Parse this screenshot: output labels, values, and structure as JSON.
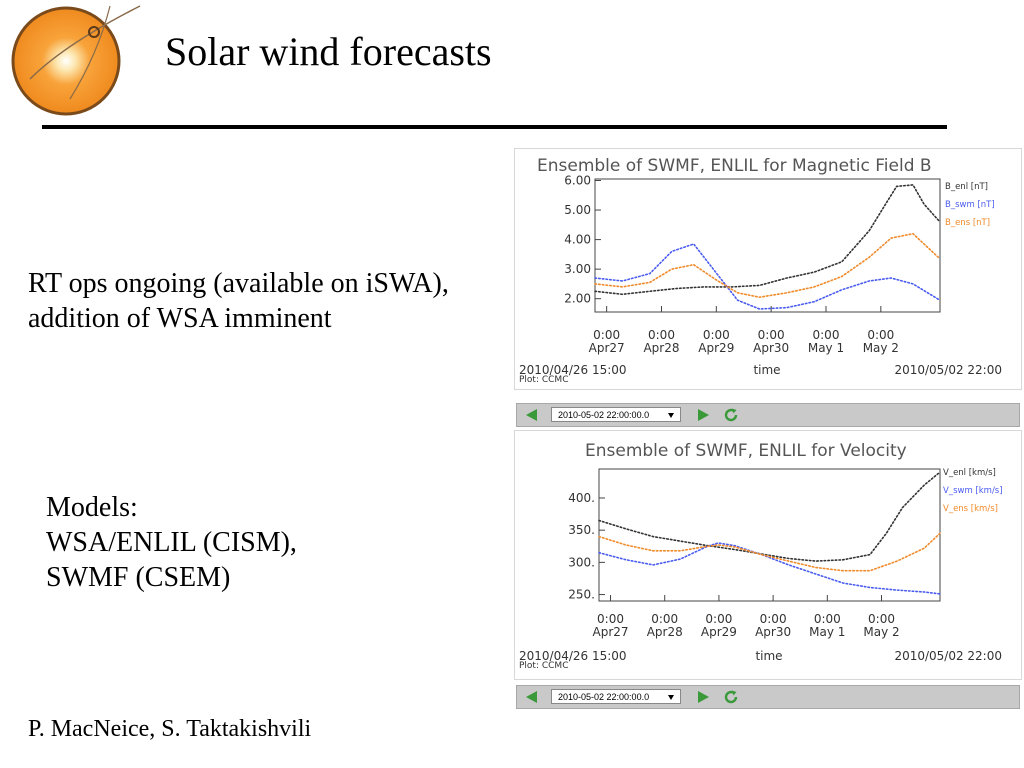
{
  "slide": {
    "title": "Solar wind forecasts",
    "body_text_1": "RT ops ongoing (available on iSWA),  addition of WSA imminent",
    "models_heading": "Models:",
    "models_line_1": "WSA/ENLIL (CISM),",
    "models_line_2": "SWMF (CSEM)",
    "credit": "P. MacNeice, S. Taktakishvili"
  },
  "colors": {
    "enlil": "#333333",
    "swmf": "#4a5cf0",
    "ensemble": "#f08a2a",
    "accent_green": "#3a9a3a"
  },
  "controls": [
    {
      "date_value": "2010-05-02 22:00:00.0"
    },
    {
      "date_value": "2010-05-02 22:00:00.0"
    }
  ],
  "chart_data": [
    {
      "type": "line",
      "title": "Ensemble of SWMF, ENLIL for Magnetic Field B",
      "xlabel": "time",
      "x_ticks": [
        {
          "t": 0.2125,
          "top": "0:00",
          "bottom": "Apr27"
        },
        {
          "t": 1.2125,
          "top": "0:00",
          "bottom": "Apr28"
        },
        {
          "t": 2.2125,
          "top": "0:00",
          "bottom": "Apr29"
        },
        {
          "t": 3.2125,
          "top": "0:00",
          "bottom": "Apr30"
        },
        {
          "t": 4.2125,
          "top": "0:00",
          "bottom": "May 1"
        },
        {
          "t": 5.2125,
          "top": "0:00",
          "bottom": "May 2"
        }
      ],
      "xlim": [
        0,
        6.2917
      ],
      "y_ticks": [
        "2.00",
        "3.00",
        "4.00",
        "5.00",
        "6.00"
      ],
      "ylim": [
        1.55,
        6.05
      ],
      "start_label": "2010/04/26 15:00",
      "end_label": "2010/05/02 22:00",
      "plot_label": "Plot: CCMC",
      "series": [
        {
          "name": "B_enl [nT]",
          "color_key": "enlil",
          "x": [
            0.0,
            0.5,
            1.0,
            1.5,
            2.0,
            2.5,
            3.0,
            3.5,
            4.0,
            4.5,
            5.0,
            5.3,
            5.5,
            5.8,
            6.0,
            6.29
          ],
          "y": [
            2.25,
            2.15,
            2.25,
            2.35,
            2.4,
            2.4,
            2.45,
            2.7,
            2.9,
            3.25,
            4.3,
            5.2,
            5.8,
            5.85,
            5.2,
            4.6
          ]
        },
        {
          "name": "B_swm [nT]",
          "color_key": "swmf",
          "x": [
            0.0,
            0.5,
            1.0,
            1.4,
            1.8,
            2.2,
            2.6,
            3.0,
            3.5,
            4.0,
            4.5,
            5.0,
            5.4,
            5.8,
            6.29
          ],
          "y": [
            2.7,
            2.6,
            2.85,
            3.6,
            3.85,
            2.9,
            1.95,
            1.65,
            1.7,
            1.9,
            2.3,
            2.6,
            2.7,
            2.5,
            1.95
          ]
        },
        {
          "name": "B_ens [nT]",
          "color_key": "ensemble",
          "x": [
            0.0,
            0.5,
            1.0,
            1.4,
            1.8,
            2.2,
            2.6,
            3.0,
            3.5,
            4.0,
            4.5,
            5.0,
            5.4,
            5.8,
            6.29
          ],
          "y": [
            2.5,
            2.4,
            2.55,
            3.0,
            3.15,
            2.65,
            2.2,
            2.05,
            2.2,
            2.4,
            2.75,
            3.4,
            4.05,
            4.2,
            3.35
          ]
        }
      ]
    },
    {
      "type": "line",
      "title": "Ensemble of SWMF, ENLIL for Velocity",
      "xlabel": "time",
      "x_ticks": [
        {
          "t": 0.2125,
          "top": "0:00",
          "bottom": "Apr27"
        },
        {
          "t": 1.2125,
          "top": "0:00",
          "bottom": "Apr28"
        },
        {
          "t": 2.2125,
          "top": "0:00",
          "bottom": "Apr29"
        },
        {
          "t": 3.2125,
          "top": "0:00",
          "bottom": "Apr30"
        },
        {
          "t": 4.2125,
          "top": "0:00",
          "bottom": "May 1"
        },
        {
          "t": 5.2125,
          "top": "0:00",
          "bottom": "May 2"
        }
      ],
      "xlim": [
        0,
        6.2917
      ],
      "y_ticks": [
        "250.",
        "300.",
        "350.",
        "400."
      ],
      "ylim": [
        240,
        445
      ],
      "start_label": "2010/04/26 15:00",
      "end_label": "2010/05/02 22:00",
      "plot_label": "Plot: CCMC",
      "series": [
        {
          "name": "V_enl [km/s]",
          "color_key": "enlil",
          "x": [
            0.0,
            0.5,
            1.0,
            1.5,
            2.0,
            2.5,
            3.0,
            3.5,
            4.0,
            4.5,
            5.0,
            5.3,
            5.6,
            6.0,
            6.29
          ],
          "y": [
            365,
            352,
            340,
            333,
            326,
            320,
            313,
            306,
            302,
            304,
            312,
            345,
            385,
            420,
            440
          ]
        },
        {
          "name": "V_swm [km/s]",
          "color_key": "swmf",
          "x": [
            0.0,
            0.5,
            1.0,
            1.5,
            2.0,
            2.2,
            2.5,
            3.0,
            3.5,
            4.0,
            4.5,
            5.0,
            5.5,
            6.0,
            6.29
          ],
          "y": [
            315,
            304,
            296,
            305,
            325,
            330,
            326,
            312,
            296,
            282,
            268,
            261,
            257,
            254,
            251
          ]
        },
        {
          "name": "V_ens [km/s]",
          "color_key": "ensemble",
          "x": [
            0.0,
            0.5,
            1.0,
            1.5,
            2.0,
            2.2,
            2.5,
            3.0,
            3.5,
            4.0,
            4.5,
            5.0,
            5.5,
            6.0,
            6.29
          ],
          "y": [
            340,
            327,
            318,
            318,
            325,
            327,
            324,
            312,
            302,
            292,
            287,
            287,
            302,
            322,
            345
          ]
        }
      ]
    }
  ]
}
